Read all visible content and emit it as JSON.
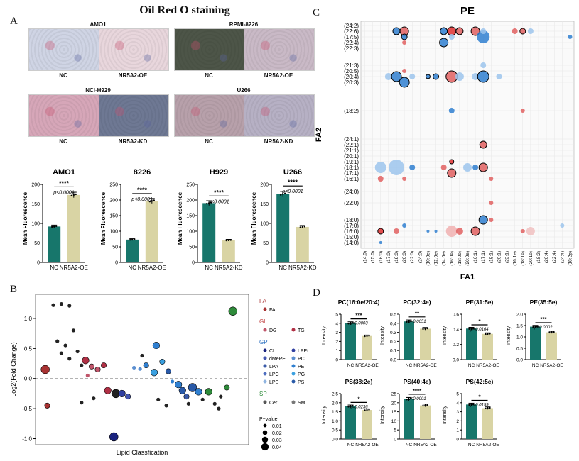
{
  "panelA": {
    "letter": "A",
    "title": "Oil Red O staining",
    "micrographs": [
      {
        "cell": "AMO1",
        "left": "NC",
        "right": "NR5A2-OE"
      },
      {
        "cell": "RPMI-8226",
        "left": "NC",
        "right": "NR5A2-OE"
      },
      {
        "cell": "NCI-H929",
        "left": "NC",
        "right": "NR5A2-KD"
      },
      {
        "cell": "U266",
        "left": "NC",
        "right": "NR5A2-KD"
      }
    ],
    "ylabel": "Mean Fluorescence",
    "bars": [
      {
        "title": "AMO1",
        "cats": [
          "NC",
          "NR5A2-OE"
        ],
        "values": [
          92,
          173
        ],
        "ymax": 200,
        "ticks": [
          0,
          50,
          100,
          150,
          200
        ],
        "p": "p<0.0001",
        "stars": "****"
      },
      {
        "title": "8226",
        "cats": [
          "NC",
          "NR5A2-OE"
        ],
        "values": [
          73,
          197
        ],
        "ymax": 250,
        "ticks": [
          0,
          50,
          100,
          150,
          200,
          250
        ],
        "p": "p<0.0001",
        "stars": "****"
      },
      {
        "title": "H929",
        "cats": [
          "NC",
          "NR5A2-KD"
        ],
        "values": [
          190,
          71
        ],
        "ymax": 250,
        "ticks": [
          0,
          50,
          100,
          150,
          200,
          250
        ],
        "p": "p<0.0001",
        "stars": "****"
      },
      {
        "title": "U266",
        "cats": [
          "NC",
          "NR5A2-KD"
        ],
        "values": [
          175,
          91
        ],
        "ymax": 200,
        "ticks": [
          0,
          50,
          100,
          150,
          200
        ],
        "p": "p<0.0001",
        "stars": "****"
      }
    ]
  },
  "panelB": {
    "letter": "B",
    "ylabel": "Log2(Fold Change)",
    "xlabel": "Lipid Classfication",
    "yticks": [
      "1.0",
      "0.5",
      "0.0",
      "-0.5",
      "-1.0"
    ],
    "legend": {
      "groups": [
        {
          "name": "FA",
          "color": "#a83232",
          "items": [
            {
              "label": "FA",
              "color": "#a83232"
            }
          ]
        },
        {
          "name": "GL",
          "color": "#c04040",
          "items": [
            {
              "label": "DG",
              "color": "#c0556a"
            },
            {
              "label": "TG",
              "color": "#b03045"
            }
          ]
        },
        {
          "name": "GP",
          "color": "#2a6fc0",
          "items": [
            {
              "label": "CL",
              "color": "#1a237e"
            },
            {
              "label": "LPEt",
              "color": "#2f3fa0"
            },
            {
              "label": "dMePE",
              "color": "#4355b0"
            },
            {
              "label": "PC",
              "color": "#5b8fd0"
            },
            {
              "label": "LPA",
              "color": "#3a5aa8"
            },
            {
              "label": "PE",
              "color": "#2f7fd0"
            },
            {
              "label": "LPC",
              "color": "#4f6fc0"
            },
            {
              "label": "PG",
              "color": "#3aa0e0"
            },
            {
              "label": "LPE",
              "color": "#8fb4e0"
            },
            {
              "label": "PS",
              "color": "#2a5aa8"
            }
          ]
        },
        {
          "name": "SP",
          "color": "#2e8b3a",
          "items": [
            {
              "label": "Cer",
              "color": "#555"
            },
            {
              "label": "SM",
              "color": "#777"
            }
          ]
        }
      ],
      "pvalue_title": "P−value",
      "pvalue_items": [
        "0.01",
        "0.02",
        "0.03",
        "0.04"
      ]
    },
    "points": [
      {
        "x": 0.02,
        "y": 0.15,
        "c": "#a83232",
        "p": 0.04
      },
      {
        "x": 0.03,
        "y": -0.45,
        "c": "#a83232",
        "p": 0.02
      },
      {
        "x": 0.06,
        "y": 1.22,
        "c": "#222",
        "p": 0.01
      },
      {
        "x": 0.1,
        "y": 1.24,
        "c": "#222",
        "p": 0.01
      },
      {
        "x": 0.14,
        "y": 1.21,
        "c": "#222",
        "p": 0.01
      },
      {
        "x": 0.08,
        "y": 0.62,
        "c": "#222",
        "p": 0.01
      },
      {
        "x": 0.12,
        "y": 0.55,
        "c": "#222",
        "p": 0.01
      },
      {
        "x": 0.16,
        "y": 0.8,
        "c": "#222",
        "p": 0.01
      },
      {
        "x": 0.1,
        "y": 0.42,
        "c": "#222",
        "p": 0.01
      },
      {
        "x": 0.18,
        "y": 0.45,
        "c": "#222",
        "p": 0.01
      },
      {
        "x": 0.14,
        "y": 0.33,
        "c": "#222",
        "p": 0.01
      },
      {
        "x": 0.2,
        "y": 0.22,
        "c": "#222",
        "p": 0.01
      },
      {
        "x": 0.22,
        "y": 0.3,
        "c": "#b03045",
        "p": 0.03
      },
      {
        "x": 0.25,
        "y": 0.2,
        "c": "#c0556a",
        "p": 0.02
      },
      {
        "x": 0.28,
        "y": 0.15,
        "c": "#c0556a",
        "p": 0.02
      },
      {
        "x": 0.31,
        "y": 0.22,
        "c": "#b03045",
        "p": 0.02
      },
      {
        "x": 0.23,
        "y": 0.05,
        "c": "#c0556a",
        "p": 0.01
      },
      {
        "x": 0.2,
        "y": -0.4,
        "c": "#222",
        "p": 0.01
      },
      {
        "x": 0.26,
        "y": -0.33,
        "c": "#222",
        "p": 0.01
      },
      {
        "x": 0.33,
        "y": -0.2,
        "c": "#b03045",
        "p": 0.03
      },
      {
        "x": 0.37,
        "y": -0.25,
        "c": "#222",
        "p": 0.04
      },
      {
        "x": 0.36,
        "y": -0.97,
        "c": "#1a237e",
        "p": 0.04
      },
      {
        "x": 0.4,
        "y": -0.25,
        "c": "#2f3fa0",
        "p": 0.03
      },
      {
        "x": 0.43,
        "y": -0.3,
        "c": "#4355b0",
        "p": 0.02
      },
      {
        "x": 0.46,
        "y": 0.18,
        "c": "#5b8fd0",
        "p": 0.01
      },
      {
        "x": 0.49,
        "y": 0.16,
        "c": "#5b8fd0",
        "p": 0.01
      },
      {
        "x": 0.52,
        "y": 0.22,
        "c": "#2f7fd0",
        "p": 0.02
      },
      {
        "x": 0.56,
        "y": 0.1,
        "c": "#3aa0e0",
        "p": 0.03
      },
      {
        "x": 0.5,
        "y": 0.38,
        "c": "#222",
        "p": 0.01
      },
      {
        "x": 0.57,
        "y": 0.55,
        "c": "#2f7fd0",
        "p": 0.03
      },
      {
        "x": 0.6,
        "y": 0.28,
        "c": "#3aa0e0",
        "p": 0.02
      },
      {
        "x": 0.63,
        "y": 0.12,
        "c": "#2a5aa8",
        "p": 0.02
      },
      {
        "x": 0.65,
        "y": -0.05,
        "c": "#2f7fd0",
        "p": 0.01
      },
      {
        "x": 0.68,
        "y": -0.1,
        "c": "#2f7fd0",
        "p": 0.03
      },
      {
        "x": 0.7,
        "y": -0.2,
        "c": "#2a5aa8",
        "p": 0.03
      },
      {
        "x": 0.72,
        "y": -0.3,
        "c": "#3a5aa8",
        "p": 0.02
      },
      {
        "x": 0.75,
        "y": -0.15,
        "c": "#2a5aa8",
        "p": 0.04
      },
      {
        "x": 0.78,
        "y": -0.22,
        "c": "#2f7fd0",
        "p": 0.03
      },
      {
        "x": 0.73,
        "y": -0.42,
        "c": "#222",
        "p": 0.01
      },
      {
        "x": 0.8,
        "y": -0.35,
        "c": "#222",
        "p": 0.01
      },
      {
        "x": 0.83,
        "y": -0.22,
        "c": "#2e8b3a",
        "p": 0.03
      },
      {
        "x": 0.86,
        "y": -0.42,
        "c": "#222",
        "p": 0.01
      },
      {
        "x": 0.89,
        "y": -0.3,
        "c": "#222",
        "p": 0.01
      },
      {
        "x": 0.92,
        "y": -0.15,
        "c": "#2e8b3a",
        "p": 0.02
      },
      {
        "x": 0.95,
        "y": 1.12,
        "c": "#2e8b3a",
        "p": 0.04
      },
      {
        "x": 0.58,
        "y": -0.35,
        "c": "#222",
        "p": 0.01
      },
      {
        "x": 0.62,
        "y": -0.45,
        "c": "#222",
        "p": 0.01
      },
      {
        "x": 0.88,
        "y": -0.5,
        "c": "#222",
        "p": 0.01
      }
    ]
  },
  "panelC": {
    "letter": "C",
    "title": "PE",
    "xlabel": "FA1",
    "ylabel": "FA2",
    "yticks": [
      "(24:2)",
      "(22:6)",
      "(17:5)",
      "(22:4)",
      "(22:3)",
      "(21:3)",
      "(20:5)",
      "(20:4)",
      "(20:3)",
      "(18:2)",
      "(24:1)",
      "(22:1)",
      "(21:1)",
      "(20:1)",
      "(19:1)",
      "(18:1)",
      "(17:1)",
      "(16:1)",
      "(24:0)",
      "(22:0)",
      "(18:0)",
      "(17:0)",
      "(16:0)",
      "(15:0)",
      "(14:0)"
    ],
    "xticks": [
      "(14:0)",
      "(15:0)",
      "(16:0)",
      "(17:0)",
      "(18:0)",
      "(20:0)",
      "(22:0)",
      "(24:0)",
      "(10:0e)",
      "(12:0e)",
      "(14:0e)",
      "(16:0e)",
      "(18:0e)",
      "(20:0e)",
      "(16:1)",
      "(17:1)",
      "(18:1)",
      "(20:1)",
      "(22:1)",
      "(16:1e)",
      "(18:1e)",
      "(20:1e)",
      "(18:2)",
      "(20:4)",
      "(22:4)",
      "(24:4)",
      "(18:2p)"
    ],
    "bubbles": [
      {
        "xi": 4,
        "yi": 1,
        "c": "#2f7fd0",
        "s": 5,
        "o": 1
      },
      {
        "xi": 5,
        "yi": 1,
        "c": "#e06060",
        "s": 6,
        "o": 1
      },
      {
        "xi": 5,
        "yi": 2,
        "c": "#2f7fd0",
        "s": 4,
        "o": 1
      },
      {
        "xi": 5,
        "yi": 3,
        "c": "#e06060",
        "s": 3,
        "o": 0
      },
      {
        "xi": 5,
        "yi": 6,
        "c": "#e06060",
        "s": 3,
        "o": 0
      },
      {
        "xi": 3,
        "yi": 7,
        "c": "#9cc4ec",
        "s": 5,
        "o": 0
      },
      {
        "xi": 4,
        "yi": 7,
        "c": "#2f7fd0",
        "s": 7,
        "o": 1
      },
      {
        "xi": 5,
        "yi": 8,
        "c": "#2f7fd0",
        "s": 7,
        "o": 1
      },
      {
        "xi": 6,
        "yi": 7,
        "c": "#9cc4ec",
        "s": 4,
        "o": 0
      },
      {
        "xi": 10,
        "yi": 1,
        "c": "#2f7fd0",
        "s": 5,
        "o": 1
      },
      {
        "xi": 11,
        "yi": 1,
        "c": "#e03030",
        "s": 6,
        "o": 1
      },
      {
        "xi": 12,
        "yi": 1,
        "c": "#e06060",
        "s": 5,
        "o": 1
      },
      {
        "xi": 10,
        "yi": 3,
        "c": "#2f7fd0",
        "s": 6,
        "o": 1
      },
      {
        "xi": 11,
        "yi": 2,
        "c": "#9cc4ec",
        "s": 4,
        "o": 0
      },
      {
        "xi": 14,
        "yi": 1,
        "c": "#e06060",
        "s": 6,
        "o": 1
      },
      {
        "xi": 15,
        "yi": 2,
        "c": "#2f7fd0",
        "s": 9,
        "o": 0
      },
      {
        "xi": 15,
        "yi": 1,
        "c": "#9cc4ec",
        "s": 4,
        "o": 0
      },
      {
        "xi": 19,
        "yi": 1,
        "c": "#e06060",
        "s": 4,
        "o": 0
      },
      {
        "xi": 20,
        "yi": 1,
        "c": "#e06060",
        "s": 4,
        "o": 1
      },
      {
        "xi": 21,
        "yi": 1,
        "c": "#9cc4ec",
        "s": 4,
        "o": 0
      },
      {
        "xi": 26,
        "yi": 2,
        "c": "#2f7fd0",
        "s": 3,
        "o": 0
      },
      {
        "xi": 8,
        "yi": 7,
        "c": "#2f7fd0",
        "s": 3,
        "o": 1
      },
      {
        "xi": 9,
        "yi": 7,
        "c": "#2f7fd0",
        "s": 4,
        "o": 1
      },
      {
        "xi": 11,
        "yi": 7,
        "c": "#e06060",
        "s": 8,
        "o": 1
      },
      {
        "xi": 12,
        "yi": 7,
        "c": "#9cc4ec",
        "s": 6,
        "o": 0
      },
      {
        "xi": 14,
        "yi": 7,
        "c": "#9cc4ec",
        "s": 5,
        "o": 0
      },
      {
        "xi": 15,
        "yi": 7,
        "c": "#2f7fd0",
        "s": 8,
        "o": 1
      },
      {
        "xi": 15,
        "yi": 5,
        "c": "#9cc4ec",
        "s": 4,
        "o": 0
      },
      {
        "xi": 17,
        "yi": 7,
        "c": "#9cc4ec",
        "s": 4,
        "o": 0
      },
      {
        "xi": 11,
        "yi": 9,
        "c": "#2f7fd0",
        "s": 4,
        "o": 0
      },
      {
        "xi": 20,
        "yi": 9,
        "c": "#e06060",
        "s": 3,
        "o": 0
      },
      {
        "xi": 15,
        "yi": 11,
        "c": "#e06060",
        "s": 5,
        "o": 1
      },
      {
        "xi": 11,
        "yi": 14,
        "c": "#e03030",
        "s": 3,
        "o": 1
      },
      {
        "xi": 2,
        "yi": 15,
        "c": "#9cc4ec",
        "s": 8,
        "o": 0
      },
      {
        "xi": 4,
        "yi": 15,
        "c": "#9cc4ec",
        "s": 11,
        "o": 0
      },
      {
        "xi": 6,
        "yi": 15,
        "c": "#2f7fd0",
        "s": 4,
        "o": 0
      },
      {
        "xi": 10,
        "yi": 15,
        "c": "#e06060",
        "s": 4,
        "o": 0
      },
      {
        "xi": 11,
        "yi": 16,
        "c": "#e06060",
        "s": 6,
        "o": 1
      },
      {
        "xi": 13,
        "yi": 15,
        "c": "#9cc4ec",
        "s": 6,
        "o": 0
      },
      {
        "xi": 14,
        "yi": 15,
        "c": "#2f7fd0",
        "s": 4,
        "o": 0
      },
      {
        "xi": 15,
        "yi": 15,
        "c": "#e06060",
        "s": 6,
        "o": 1
      },
      {
        "xi": 2,
        "yi": 17,
        "c": "#e06060",
        "s": 4,
        "o": 0
      },
      {
        "xi": 5,
        "yi": 17,
        "c": "#e06060",
        "s": 3,
        "o": 0
      },
      {
        "xi": 16,
        "yi": 17,
        "c": "#e06060",
        "s": 3,
        "o": 0
      },
      {
        "xi": 16,
        "yi": 19,
        "c": "#e06060",
        "s": 3,
        "o": 0
      },
      {
        "xi": 16,
        "yi": 20,
        "c": "#e06060",
        "s": 3,
        "o": 0
      },
      {
        "xi": 2,
        "yi": 22,
        "c": "#e03030",
        "s": 4,
        "o": 1
      },
      {
        "xi": 4,
        "yi": 22,
        "c": "#e06060",
        "s": 4,
        "o": 0
      },
      {
        "xi": 5,
        "yi": 21,
        "c": "#2f7fd0",
        "s": 3,
        "o": 0
      },
      {
        "xi": 8,
        "yi": 22,
        "c": "#2f7fd0",
        "s": 2,
        "o": 0
      },
      {
        "xi": 9,
        "yi": 22,
        "c": "#2f7fd0",
        "s": 2,
        "o": 0
      },
      {
        "xi": 11,
        "yi": 22,
        "c": "#f0b0b0",
        "s": 8,
        "o": 0
      },
      {
        "xi": 12,
        "yi": 22,
        "c": "#e06060",
        "s": 5,
        "o": 0
      },
      {
        "xi": 14,
        "yi": 22,
        "c": "#e06060",
        "s": 6,
        "o": 1
      },
      {
        "xi": 15,
        "yi": 20,
        "c": "#2f7fd0",
        "s": 6,
        "o": 1
      },
      {
        "xi": 20,
        "yi": 22,
        "c": "#e06060",
        "s": 3,
        "o": 0
      },
      {
        "xi": 21,
        "yi": 22,
        "c": "#f0c0c0",
        "s": 6,
        "o": 0
      },
      {
        "xi": 2,
        "yi": 24,
        "c": "#2f7fd0",
        "s": 2,
        "o": 0
      },
      {
        "xi": 25,
        "yi": 21,
        "c": "#9cc4ec",
        "s": 3,
        "o": 0
      }
    ]
  },
  "panelD": {
    "letter": "D",
    "ylabel": "Intensity",
    "plots": [
      {
        "title": "PC(16:0e/20:4)",
        "cats": [
          "NC",
          "NR5A2-OE"
        ],
        "values": [
          4.0,
          2.6
        ],
        "ymax": 5,
        "ticks": [
          "0",
          "1",
          "2",
          "3",
          "4",
          "5"
        ],
        "p": "p=0.0003",
        "stars": "***"
      },
      {
        "title": "PC(32:4e)",
        "cats": [
          "NC",
          "NR5A2-OE"
        ],
        "values": [
          0.42,
          0.34
        ],
        "ymax": 0.5,
        "ticks": [
          "0.0",
          "0.1",
          "0.2",
          "0.3",
          "0.4",
          "0.5"
        ],
        "p": "p=0.0051",
        "stars": "**"
      },
      {
        "title": "PE(31:5e)",
        "cats": [
          "NC",
          "NR5A2-OE"
        ],
        "values": [
          0.41,
          0.34
        ],
        "ymax": 0.6,
        "ticks": [
          "0.0",
          "0.2",
          "0.4",
          "0.6"
        ],
        "p": "p=0.0164",
        "stars": "*"
      },
      {
        "title": "PE(35:5e)",
        "cats": [
          "NC",
          "NR5A2-OE"
        ],
        "values": [
          1.45,
          1.2
        ],
        "ymax": 2.0,
        "ticks": [
          "0.0",
          "0.5",
          "1.0",
          "1.5",
          "2.0"
        ],
        "p": "p=0.0002",
        "stars": "***"
      },
      {
        "title": "PS(38:2e)",
        "cats": [
          "NC",
          "NR5A2-OE"
        ],
        "values": [
          1.8,
          1.6
        ],
        "ymax": 2.5,
        "ticks": [
          "0.0",
          "0.5",
          "1.0",
          "1.5",
          "2.0",
          "2.5"
        ],
        "p": "p=0.0236",
        "stars": "*"
      },
      {
        "title": "PS(40:4e)",
        "cats": [
          "NC",
          "NR5A2-OE"
        ],
        "values": [
          22,
          18.5
        ],
        "ymax": 25,
        "ticks": [
          "0",
          "5",
          "10",
          "15",
          "20",
          "25"
        ],
        "p": "p<0.0001",
        "stars": "****"
      },
      {
        "title": "PS(42:5e)",
        "cats": [
          "NC",
          "NR5A2-OE"
        ],
        "values": [
          3.8,
          3.4
        ],
        "ymax": 5,
        "ticks": [
          "0",
          "1",
          "2",
          "3",
          "4",
          "5"
        ],
        "p": "p=0.0159",
        "stars": "*"
      }
    ]
  },
  "colors": {
    "nc": "#17766b",
    "oe": "#d9d4a4",
    "teal_dot": "#000"
  }
}
